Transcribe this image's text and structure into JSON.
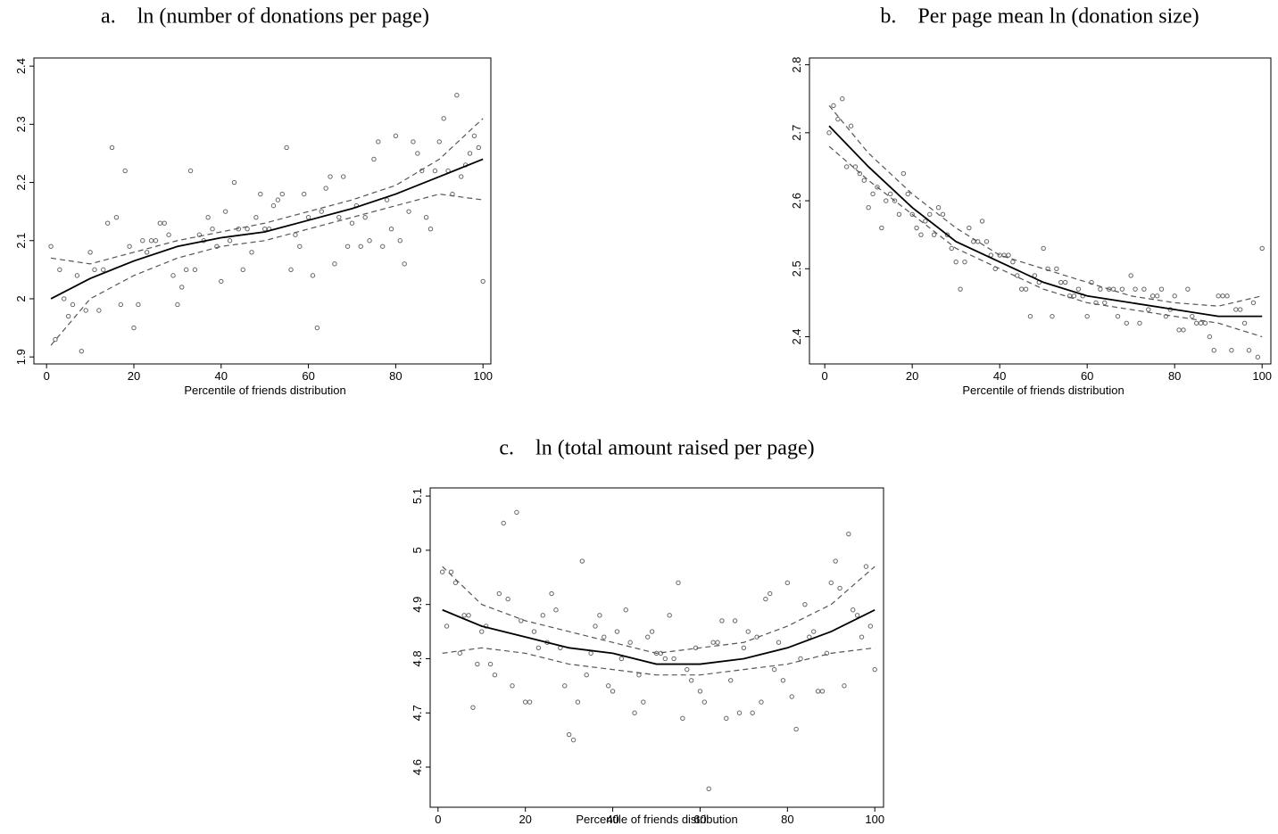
{
  "chart_data": [
    {
      "type": "scatter",
      "title": "a.    ln (number of donations per page)",
      "x_label": "Percentile of friends distribution",
      "xlim": [
        -2.9,
        101.8
      ],
      "ylim": [
        1.888,
        2.414
      ],
      "xticks": [
        0,
        20,
        40,
        60,
        80,
        100
      ],
      "yticks": [
        1.9,
        2,
        2.1,
        2.2,
        2.3,
        2.4
      ],
      "point_color": "#666666",
      "line_color": "#000000",
      "ci_color": "#555555",
      "x": [
        1,
        2,
        3,
        4,
        5,
        6,
        7,
        8,
        9,
        10,
        11,
        12,
        13,
        14,
        15,
        16,
        17,
        18,
        19,
        20,
        21,
        22,
        23,
        24,
        25,
        26,
        27,
        28,
        29,
        30,
        31,
        32,
        33,
        34,
        35,
        36,
        37,
        38,
        39,
        40,
        41,
        42,
        43,
        44,
        45,
        46,
        47,
        48,
        49,
        50,
        51,
        52,
        53,
        54,
        55,
        56,
        57,
        58,
        59,
        60,
        61,
        62,
        63,
        64,
        65,
        66,
        67,
        68,
        69,
        70,
        71,
        72,
        73,
        74,
        75,
        76,
        77,
        78,
        79,
        80,
        81,
        82,
        83,
        84,
        85,
        86,
        87,
        88,
        89,
        90,
        91,
        92,
        93,
        94,
        95,
        96,
        97,
        98,
        99,
        100
      ],
      "values": [
        2.09,
        1.93,
        2.05,
        2.0,
        1.97,
        1.99,
        2.04,
        1.91,
        1.98,
        2.08,
        2.05,
        1.98,
        2.05,
        2.13,
        2.26,
        2.14,
        1.99,
        2.22,
        2.09,
        1.95,
        1.99,
        2.1,
        2.08,
        2.1,
        2.1,
        2.13,
        2.13,
        2.11,
        2.04,
        1.99,
        2.02,
        2.05,
        2.22,
        2.05,
        2.11,
        2.1,
        2.14,
        2.12,
        2.09,
        2.03,
        2.15,
        2.1,
        2.2,
        2.12,
        2.05,
        2.12,
        2.08,
        2.14,
        2.18,
        2.12,
        2.12,
        2.16,
        2.17,
        2.18,
        2.26,
        2.05,
        2.11,
        2.09,
        2.18,
        2.14,
        2.04,
        1.95,
        2.15,
        2.19,
        2.21,
        2.06,
        2.14,
        2.21,
        2.09,
        2.13,
        2.16,
        2.09,
        2.14,
        2.1,
        2.24,
        2.27,
        2.09,
        2.17,
        2.12,
        2.28,
        2.1,
        2.06,
        2.15,
        2.27,
        2.25,
        2.22,
        2.14,
        2.12,
        2.22,
        2.27,
        2.31,
        2.22,
        2.18,
        2.35,
        2.21,
        2.23,
        2.25,
        2.28,
        2.26,
        2.03
      ],
      "line_x": [
        1,
        10,
        20,
        30,
        40,
        50,
        60,
        70,
        80,
        90,
        100
      ],
      "lines": [
        {
          "style": "solid",
          "values": [
            2.0,
            2.035,
            2.065,
            2.09,
            2.105,
            2.115,
            2.135,
            2.155,
            2.18,
            2.21,
            2.24
          ]
        },
        {
          "style": "dashed",
          "values": [
            2.07,
            2.06,
            2.08,
            2.1,
            2.115,
            2.13,
            2.15,
            2.17,
            2.195,
            2.24,
            2.31
          ]
        },
        {
          "style": "dashed",
          "values": [
            1.92,
            2.0,
            2.04,
            2.07,
            2.09,
            2.1,
            2.12,
            2.14,
            2.16,
            2.18,
            2.17
          ]
        }
      ]
    },
    {
      "type": "scatter",
      "title": "b.    Per page mean ln (donation size)",
      "x_label": "Percentile of friends distribution",
      "xlim": [
        -3.5,
        102
      ],
      "ylim": [
        2.36,
        2.81
      ],
      "xticks": [
        0,
        20,
        40,
        60,
        80,
        100
      ],
      "yticks": [
        2.4,
        2.5,
        2.6,
        2.7,
        2.8
      ],
      "point_color": "#666666",
      "line_color": "#000000",
      "ci_color": "#555555",
      "x": [
        1,
        2,
        3,
        4,
        5,
        6,
        7,
        8,
        9,
        10,
        11,
        12,
        13,
        14,
        15,
        16,
        17,
        18,
        19,
        20,
        21,
        22,
        23,
        24,
        25,
        26,
        27,
        28,
        29,
        30,
        31,
        32,
        33,
        34,
        35,
        36,
        37,
        38,
        39,
        40,
        41,
        42,
        43,
        44,
        45,
        46,
        47,
        48,
        49,
        50,
        51,
        52,
        53,
        54,
        55,
        56,
        57,
        58,
        59,
        60,
        61,
        62,
        63,
        64,
        65,
        66,
        67,
        68,
        69,
        70,
        71,
        72,
        73,
        74,
        75,
        76,
        77,
        78,
        79,
        80,
        81,
        82,
        83,
        84,
        85,
        86,
        87,
        88,
        89,
        90,
        91,
        92,
        93,
        94,
        95,
        96,
        97,
        98,
        99,
        100
      ],
      "values": [
        2.7,
        2.74,
        2.72,
        2.75,
        2.65,
        2.71,
        2.65,
        2.64,
        2.63,
        2.59,
        2.61,
        2.62,
        2.56,
        2.6,
        2.61,
        2.6,
        2.58,
        2.64,
        2.61,
        2.58,
        2.56,
        2.55,
        2.57,
        2.58,
        2.55,
        2.59,
        2.58,
        2.55,
        2.53,
        2.51,
        2.47,
        2.51,
        2.56,
        2.54,
        2.54,
        2.57,
        2.54,
        2.52,
        2.5,
        2.52,
        2.52,
        2.52,
        2.51,
        2.49,
        2.47,
        2.47,
        2.43,
        2.49,
        2.48,
        2.53,
        2.5,
        2.43,
        2.5,
        2.48,
        2.48,
        2.46,
        2.46,
        2.47,
        2.46,
        2.43,
        2.48,
        2.45,
        2.47,
        2.45,
        2.47,
        2.47,
        2.43,
        2.47,
        2.42,
        2.49,
        2.47,
        2.42,
        2.47,
        2.44,
        2.46,
        2.46,
        2.47,
        2.43,
        2.44,
        2.46,
        2.41,
        2.41,
        2.47,
        2.43,
        2.42,
        2.42,
        2.42,
        2.4,
        2.38,
        2.46,
        2.46,
        2.46,
        2.38,
        2.44,
        2.44,
        2.42,
        2.38,
        2.45,
        2.37,
        2.53
      ],
      "line_x": [
        1,
        10,
        20,
        30,
        40,
        50,
        60,
        70,
        80,
        90,
        100
      ],
      "lines": [
        {
          "style": "solid",
          "values": [
            2.71,
            2.65,
            2.59,
            2.54,
            2.51,
            2.48,
            2.46,
            2.45,
            2.44,
            2.43,
            2.43
          ]
        },
        {
          "style": "dashed",
          "values": [
            2.74,
            2.67,
            2.61,
            2.56,
            2.52,
            2.5,
            2.48,
            2.46,
            2.45,
            2.445,
            2.46
          ]
        },
        {
          "style": "dashed",
          "values": [
            2.68,
            2.63,
            2.58,
            2.53,
            2.5,
            2.47,
            2.45,
            2.44,
            2.43,
            2.42,
            2.4
          ]
        }
      ]
    },
    {
      "type": "scatter",
      "title": "c.    ln (total amount raised per page)",
      "x_label": "Percentile of friends distribution",
      "xlim": [
        -1.8,
        102
      ],
      "ylim": [
        4.526,
        5.115
      ],
      "xticks": [
        0,
        20,
        40,
        60,
        80,
        100
      ],
      "yticks": [
        4.6,
        4.7,
        4.8,
        4.9,
        5,
        5.1
      ],
      "point_color": "#666666",
      "line_color": "#000000",
      "ci_color": "#555555",
      "x": [
        1,
        2,
        3,
        4,
        5,
        6,
        7,
        8,
        9,
        10,
        11,
        12,
        13,
        14,
        15,
        16,
        17,
        18,
        19,
        20,
        21,
        22,
        23,
        24,
        25,
        26,
        27,
        28,
        29,
        30,
        31,
        32,
        33,
        34,
        35,
        36,
        37,
        38,
        39,
        40,
        41,
        42,
        43,
        44,
        45,
        46,
        47,
        48,
        49,
        50,
        51,
        52,
        53,
        54,
        55,
        56,
        57,
        58,
        59,
        60,
        61,
        62,
        63,
        64,
        65,
        66,
        67,
        68,
        69,
        70,
        71,
        72,
        73,
        74,
        75,
        76,
        77,
        78,
        79,
        80,
        81,
        82,
        83,
        84,
        85,
        86,
        87,
        88,
        89,
        90,
        91,
        92,
        93,
        94,
        95,
        96,
        97,
        98,
        99,
        100
      ],
      "values": [
        4.96,
        4.86,
        4.96,
        4.94,
        4.81,
        4.88,
        4.88,
        4.71,
        4.79,
        4.85,
        4.86,
        4.79,
        4.77,
        4.92,
        5.05,
        4.91,
        4.75,
        5.07,
        4.87,
        4.72,
        4.72,
        4.85,
        4.82,
        4.88,
        4.83,
        4.92,
        4.89,
        4.82,
        4.75,
        4.66,
        4.65,
        4.72,
        4.98,
        4.77,
        4.81,
        4.86,
        4.88,
        4.84,
        4.75,
        4.74,
        4.85,
        4.8,
        4.89,
        4.83,
        4.7,
        4.77,
        4.72,
        4.84,
        4.85,
        4.81,
        4.81,
        4.8,
        4.88,
        4.8,
        4.94,
        4.69,
        4.78,
        4.76,
        4.82,
        4.74,
        4.72,
        4.56,
        4.83,
        4.83,
        4.87,
        4.69,
        4.76,
        4.87,
        4.7,
        4.82,
        4.85,
        4.7,
        4.84,
        4.72,
        4.91,
        4.92,
        4.78,
        4.83,
        4.76,
        4.94,
        4.73,
        4.67,
        4.8,
        4.9,
        4.84,
        4.85,
        4.74,
        4.74,
        4.81,
        4.94,
        4.98,
        4.93,
        4.75,
        5.03,
        4.89,
        4.88,
        4.84,
        4.97,
        4.86,
        4.78
      ],
      "line_x": [
        1,
        10,
        20,
        30,
        40,
        50,
        60,
        70,
        80,
        90,
        100
      ],
      "lines": [
        {
          "style": "solid",
          "values": [
            4.89,
            4.86,
            4.84,
            4.82,
            4.81,
            4.79,
            4.79,
            4.8,
            4.82,
            4.85,
            4.89
          ]
        },
        {
          "style": "dashed",
          "values": [
            4.97,
            4.9,
            4.87,
            4.85,
            4.83,
            4.81,
            4.82,
            4.83,
            4.86,
            4.9,
            4.97
          ]
        },
        {
          "style": "dashed",
          "values": [
            4.81,
            4.82,
            4.81,
            4.79,
            4.78,
            4.77,
            4.77,
            4.78,
            4.79,
            4.81,
            4.82
          ]
        }
      ]
    }
  ]
}
